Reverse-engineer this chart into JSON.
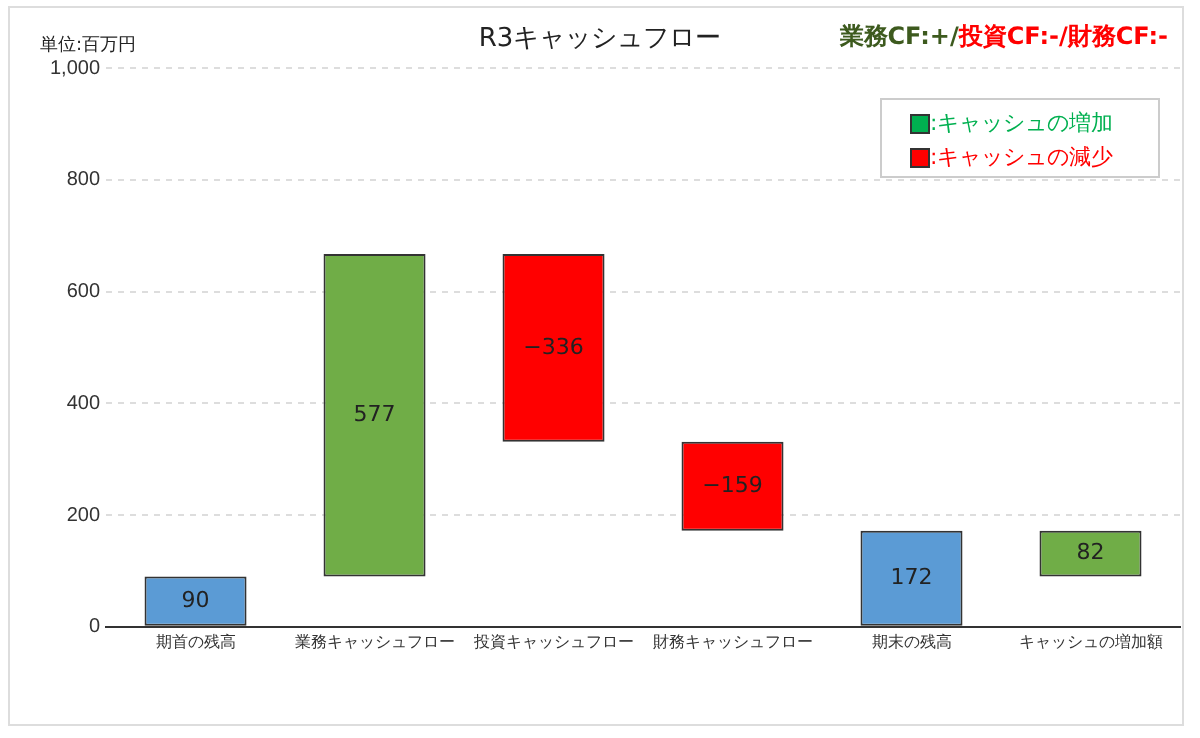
{
  "chart_data": {
    "type": "bar",
    "title": "R3キャッシュフロー",
    "ylabel": "単位:百万円",
    "annotations": [
      "業務CF:+/",
      "投資CF:-/",
      "財務CF:-",
      ":キャッシュの増加",
      ":キャッシュの減少"
    ],
    "categories": [
      "期首の残高",
      "業務キャッシュフロー",
      "投資キャッシュフロー",
      "財務キャッシュフロー",
      "期末の残高",
      "キャッシュの増加額"
    ],
    "values": [
      90,
      577,
      -336,
      -159,
      172,
      82
    ],
    "base": [
      0,
      90,
      667,
      331,
      0,
      90
    ],
    "colors": [
      "#5b9bd5",
      "#70ad47",
      "#ff0000",
      "#ff0000",
      "#5b9bd5",
      "#70ad47"
    ],
    "value_labels": [
      "90",
      "577",
      "−336",
      "−159",
      "172",
      "82"
    ],
    "ylim": [
      0,
      1000
    ],
    "yticks": [
      0,
      200,
      400,
      600,
      800,
      {
        "value": 1000,
        "label": "1,000"
      }
    ],
    "grid": "y"
  }
}
